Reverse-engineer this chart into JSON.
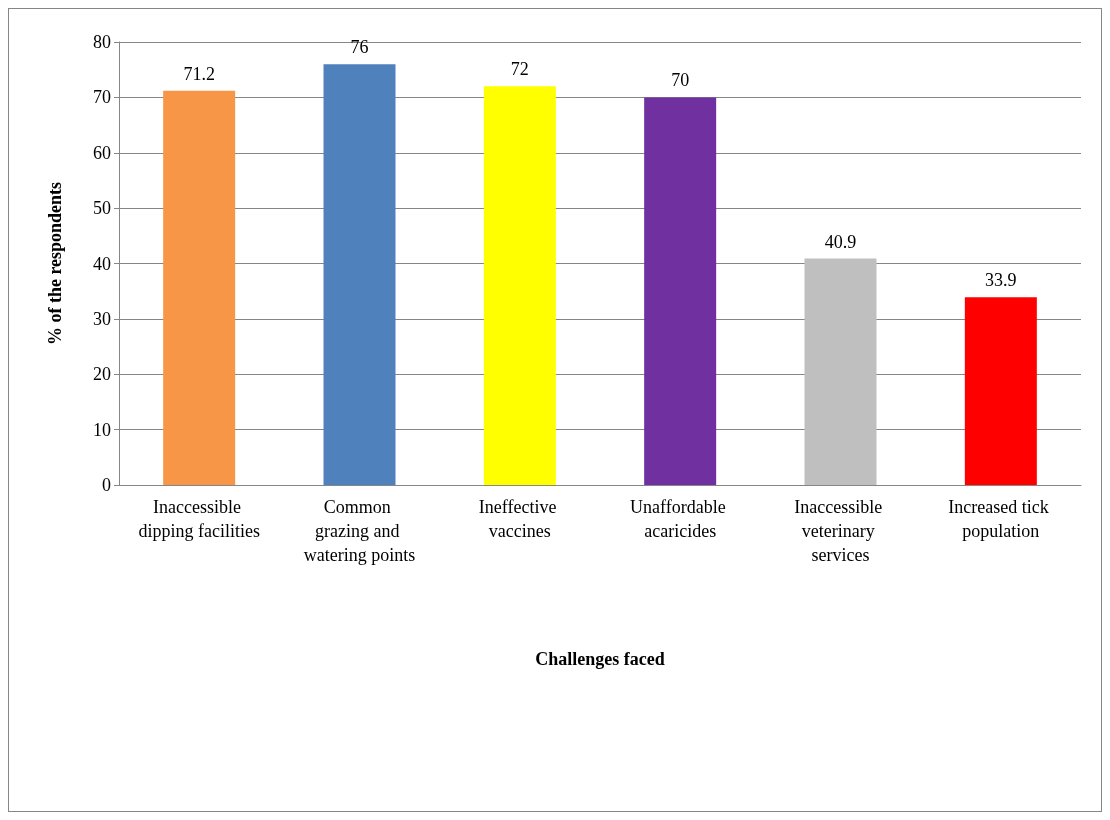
{
  "chart_data": {
    "type": "bar",
    "xlabel": "Challenges faced",
    "ylabel": "% of the respondents",
    "categories": [
      "Inaccessible dipping facilities",
      "Common grazing and watering points",
      "Ineffective vaccines",
      "Unaffordable acaricides",
      "Inaccessible veterinary services",
      "Increased tick population"
    ],
    "values": [
      71.2,
      76,
      72,
      70,
      40.9,
      33.9
    ],
    "colors": [
      "#f79646",
      "#4f81bd",
      "#ffff00",
      "#7030a0",
      "#bfbfbf",
      "#ff0000"
    ],
    "ylim": [
      0,
      80
    ],
    "yticks": [
      0,
      10,
      20,
      30,
      40,
      50,
      60,
      70,
      80
    ],
    "grid": "y",
    "data_labels": true
  }
}
